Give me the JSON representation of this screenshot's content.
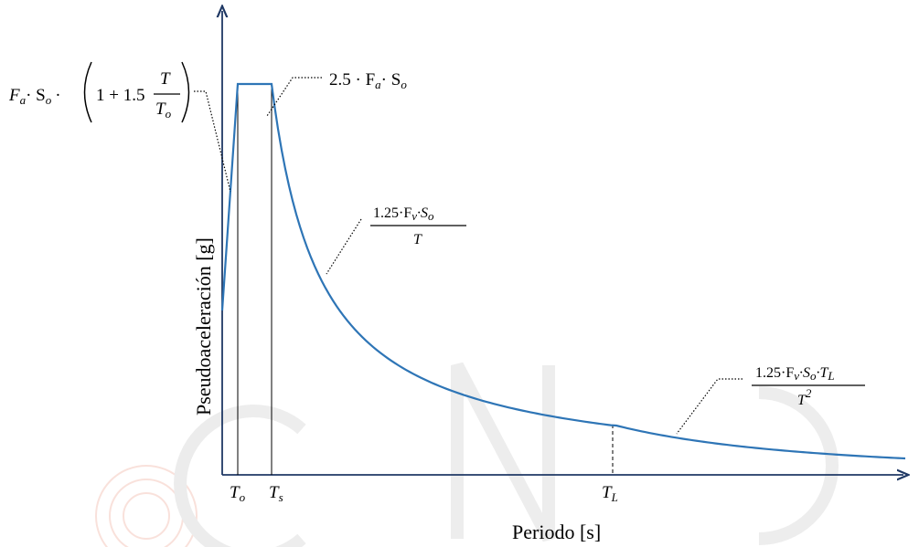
{
  "y_axis_label": "Pseudoaceleración [g]",
  "x_axis_label": "Periodo [s]",
  "period_labels": [
    [
      "T",
      "o"
    ],
    [
      "T",
      "s"
    ],
    [
      "T",
      "L"
    ]
  ],
  "annotations": {
    "ascending": [
      "F",
      "a",
      "· S",
      "o",
      "·",
      "1 + 1.5",
      "T",
      "T",
      "o"
    ],
    "plateau": [
      "2.5 · F",
      "a",
      "· S",
      "o"
    ],
    "velocity": {
      "numerator": [
        "1.25·F",
        "v",
        "·S",
        "o"
      ],
      "denominator": "T"
    },
    "displacement": {
      "numerator": [
        "1.25·F",
        "v",
        "·S",
        "o",
        "·T",
        "L"
      ],
      "denominator": [
        "T",
        "2"
      ]
    }
  }
}
